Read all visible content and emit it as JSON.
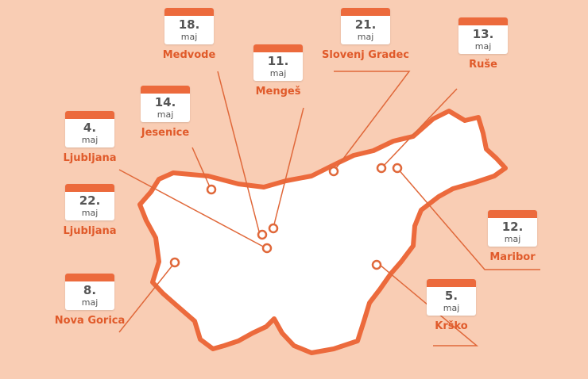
{
  "colors": {
    "background": "#f9cdb4",
    "accent": "#ec6a3c",
    "map_fill": "#ffffff",
    "label": "#e05a2a"
  },
  "events": [
    {
      "id": "medvode",
      "day": "18.",
      "month": "maj",
      "city": "Medvode"
    },
    {
      "id": "menges",
      "day": "11.",
      "month": "maj",
      "city": "Mengeš"
    },
    {
      "id": "slovenj-gradec",
      "day": "21.",
      "month": "maj",
      "city": "Slovenj Gradec"
    },
    {
      "id": "ruse",
      "day": "13.",
      "month": "maj",
      "city": "Ruše"
    },
    {
      "id": "jesenice",
      "day": "14.",
      "month": "maj",
      "city": "Jesenice"
    },
    {
      "id": "ljubljana-4",
      "day": "4.",
      "month": "maj",
      "city": "Ljubljana"
    },
    {
      "id": "ljubljana-22",
      "day": "22.",
      "month": "maj",
      "city": "Ljubljana"
    },
    {
      "id": "nova-gorica",
      "day": "8.",
      "month": "maj",
      "city": "Nova Gorica"
    },
    {
      "id": "maribor",
      "day": "12.",
      "month": "maj",
      "city": "Maribor"
    },
    {
      "id": "krsko",
      "day": "5.",
      "month": "maj",
      "city": "Krško"
    }
  ]
}
